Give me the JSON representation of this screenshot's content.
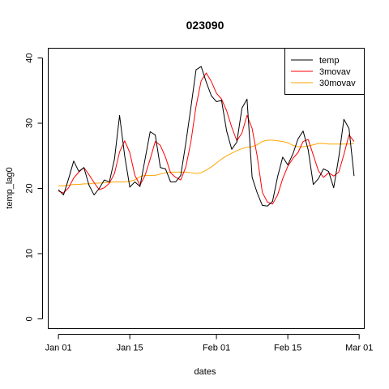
{
  "chart_data": {
    "type": "line",
    "title": "023090",
    "xlabel": "dates",
    "ylabel": "temp_lag0",
    "x_ticks": [
      {
        "date": "2013-01-01",
        "label": "Jan 01"
      },
      {
        "date": "2013-01-15",
        "label": "Jan 15"
      },
      {
        "date": "2013-02-01",
        "label": "Feb 01"
      },
      {
        "date": "2013-02-15",
        "label": "Feb 15"
      },
      {
        "date": "2013-03-01",
        "label": "Mar 01"
      }
    ],
    "y_ticks": [
      0,
      10,
      20,
      30,
      40
    ],
    "xlim": [
      "2012-12-30",
      "2013-03-02"
    ],
    "ylim": [
      -1.5,
      41.5
    ],
    "legend_position": "top-right",
    "dates": [
      "2013-01-01",
      "2013-01-02",
      "2013-01-03",
      "2013-01-04",
      "2013-01-05",
      "2013-01-06",
      "2013-01-07",
      "2013-01-08",
      "2013-01-09",
      "2013-01-10",
      "2013-01-11",
      "2013-01-12",
      "2013-01-13",
      "2013-01-14",
      "2013-01-15",
      "2013-01-16",
      "2013-01-17",
      "2013-01-18",
      "2013-01-19",
      "2013-01-20",
      "2013-01-21",
      "2013-01-22",
      "2013-01-23",
      "2013-01-24",
      "2013-01-25",
      "2013-01-26",
      "2013-01-27",
      "2013-01-28",
      "2013-01-29",
      "2013-01-30",
      "2013-01-31",
      "2013-02-01",
      "2013-02-02",
      "2013-02-03",
      "2013-02-04",
      "2013-02-05",
      "2013-02-06",
      "2013-02-07",
      "2013-02-08",
      "2013-02-09",
      "2013-02-10",
      "2013-02-11",
      "2013-02-12",
      "2013-02-13",
      "2013-02-14",
      "2013-02-15",
      "2013-02-16",
      "2013-02-17",
      "2013-02-18",
      "2013-02-19",
      "2013-02-20",
      "2013-02-21",
      "2013-02-22",
      "2013-02-23",
      "2013-02-24",
      "2013-02-25",
      "2013-02-26",
      "2013-02-27",
      "2013-02-28"
    ],
    "series": [
      {
        "name": "temp",
        "color": "#000000",
        "values": [
          19.8,
          19.0,
          21.5,
          24.2,
          22.6,
          23.2,
          20.5,
          19.0,
          20.0,
          21.3,
          21.0,
          24.5,
          31.2,
          25.0,
          20.2,
          21.0,
          20.3,
          24.5,
          28.7,
          28.2,
          23.2,
          23.0,
          21.0,
          21.0,
          22.0,
          27.0,
          32.5,
          38.2,
          38.7,
          36.3,
          34.2,
          33.3,
          33.5,
          28.8,
          26.0,
          27.1,
          32.3,
          33.7,
          21.7,
          19.3,
          17.4,
          17.3,
          18.0,
          21.8,
          24.8,
          23.6,
          25.3,
          27.6,
          28.8,
          25.9,
          20.6,
          21.5,
          23.0,
          22.6,
          20.1,
          24.8,
          30.6,
          29.2,
          21.9
        ]
      },
      {
        "name": "3movav",
        "color": "#ff0000",
        "values": [
          19.6,
          19.3,
          20.1,
          21.6,
          22.5,
          23.2,
          22.1,
          20.9,
          19.8,
          20.1,
          20.8,
          22.3,
          25.6,
          27.3,
          25.5,
          22.0,
          20.5,
          22.0,
          24.5,
          27.2,
          26.6,
          24.8,
          22.4,
          21.7,
          21.3,
          23.3,
          27.2,
          32.6,
          36.5,
          37.7,
          36.4,
          34.6,
          33.7,
          31.9,
          29.4,
          27.3,
          28.5,
          31.2,
          29.2,
          24.9,
          19.4,
          17.9,
          17.6,
          19.0,
          21.5,
          23.4,
          24.6,
          25.5,
          27.2,
          27.5,
          25.1,
          22.7,
          21.7,
          22.4,
          21.9,
          22.5,
          25.2,
          28.2,
          27.2
        ]
      },
      {
        "name": "30movav",
        "color": "#ffa500",
        "values": [
          20.4,
          20.4,
          20.5,
          20.6,
          20.6,
          20.7,
          20.7,
          20.8,
          20.8,
          20.9,
          20.9,
          21.0,
          21.0,
          21.0,
          21.1,
          21.3,
          21.8,
          22.0,
          22.0,
          22.0,
          22.2,
          22.4,
          22.5,
          22.5,
          22.5,
          22.5,
          22.4,
          22.3,
          22.4,
          22.8,
          23.3,
          23.9,
          24.5,
          25.0,
          25.4,
          25.8,
          26.1,
          26.3,
          26.4,
          26.7,
          27.2,
          27.4,
          27.4,
          27.3,
          27.2,
          27.0,
          26.6,
          26.4,
          26.4,
          26.5,
          26.7,
          26.9,
          26.9,
          26.8,
          26.8,
          26.8,
          26.8,
          26.8,
          26.9
        ]
      }
    ]
  }
}
